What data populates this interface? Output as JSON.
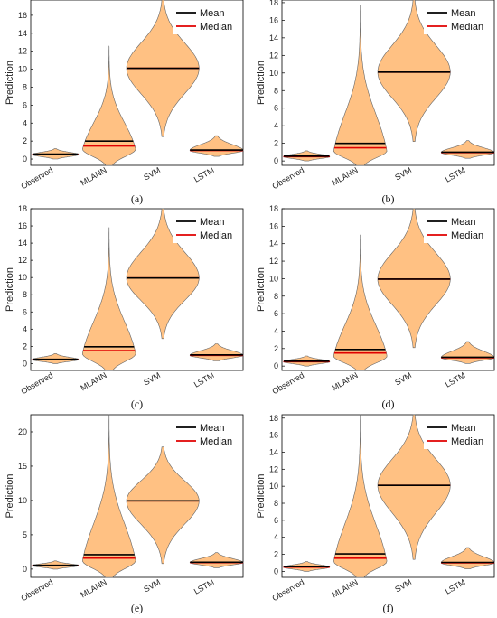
{
  "chart_data": [
    {
      "panel_label": "(a)",
      "type": "violin",
      "ylabel": "Prediction",
      "ylim": [
        -0.7,
        17.7
      ],
      "yticks": [
        0,
        2,
        4,
        6,
        8,
        10,
        12,
        14,
        16
      ],
      "categories": [
        "Observed",
        "MLANN",
        "SVM",
        "LSTM"
      ],
      "legend": [
        "Mean",
        "Median"
      ],
      "legend_position": "top-right",
      "series": [
        {
          "name": "Observed",
          "mean": 0.55,
          "median": 0.5,
          "min": 0.0,
          "max": 1.15
        },
        {
          "name": "MLANN",
          "mean": 2.0,
          "median": 1.45,
          "min": -0.7,
          "max": 12.6
        },
        {
          "name": "SVM",
          "mean": 10.1,
          "median": 10.1,
          "min": 2.5,
          "max": 17.7
        },
        {
          "name": "LSTM",
          "mean": 1.0,
          "median": 0.95,
          "min": 0.3,
          "max": 2.6
        }
      ]
    },
    {
      "panel_label": "(b)",
      "type": "violin",
      "ylabel": "Prediction",
      "ylim": [
        -0.5,
        18.3
      ],
      "yticks": [
        0,
        2,
        4,
        6,
        8,
        10,
        12,
        14,
        16,
        18
      ],
      "categories": [
        "Observed",
        "MLANN",
        "SVM",
        "LSTM"
      ],
      "legend": [
        "Mean",
        "Median"
      ],
      "legend_position": "top-right",
      "series": [
        {
          "name": "Observed",
          "mean": 0.55,
          "median": 0.5,
          "min": 0.0,
          "max": 1.15
        },
        {
          "name": "MLANN",
          "mean": 2.0,
          "median": 1.5,
          "min": -0.5,
          "max": 17.7
        },
        {
          "name": "SVM",
          "mean": 10.1,
          "median": 10.1,
          "min": 2.2,
          "max": 18.3
        },
        {
          "name": "LSTM",
          "mean": 1.0,
          "median": 0.95,
          "min": 0.3,
          "max": 2.3
        }
      ]
    },
    {
      "panel_label": "(c)",
      "type": "violin",
      "ylabel": "Prediction",
      "ylim": [
        -0.8,
        18.0
      ],
      "yticks": [
        0,
        2,
        4,
        6,
        8,
        10,
        12,
        14,
        16,
        18
      ],
      "categories": [
        "Observed",
        "MLANN",
        "SVM",
        "LSTM"
      ],
      "legend": [
        "Mean",
        "Median"
      ],
      "legend_position": "top-right",
      "series": [
        {
          "name": "Observed",
          "mean": 0.5,
          "median": 0.45,
          "min": 0.0,
          "max": 1.15
        },
        {
          "name": "MLANN",
          "mean": 1.95,
          "median": 1.5,
          "min": -0.8,
          "max": 15.8
        },
        {
          "name": "SVM",
          "mean": 9.95,
          "median": 9.95,
          "min": 2.9,
          "max": 18.0
        },
        {
          "name": "LSTM",
          "mean": 1.0,
          "median": 0.95,
          "min": 0.3,
          "max": 2.3
        }
      ]
    },
    {
      "panel_label": "(d)",
      "type": "violin",
      "ylabel": "Prediction",
      "ylim": [
        -0.5,
        18.0
      ],
      "yticks": [
        0,
        2,
        4,
        6,
        8,
        10,
        12,
        14,
        16,
        18
      ],
      "categories": [
        "Observed",
        "MLANN",
        "SVM",
        "LSTM"
      ],
      "legend": [
        "Mean",
        "Median"
      ],
      "legend_position": "top-right",
      "series": [
        {
          "name": "Observed",
          "mean": 0.55,
          "median": 0.5,
          "min": 0.0,
          "max": 1.15
        },
        {
          "name": "MLANN",
          "mean": 1.9,
          "median": 1.5,
          "min": -0.5,
          "max": 15.0
        },
        {
          "name": "SVM",
          "mean": 9.95,
          "median": 9.95,
          "min": 2.1,
          "max": 18.0
        },
        {
          "name": "LSTM",
          "mean": 1.0,
          "median": 0.95,
          "min": 0.3,
          "max": 2.8
        }
      ]
    },
    {
      "panel_label": "(e)",
      "type": "violin",
      "ylabel": "Prediction",
      "ylim": [
        -1.2,
        22.5
      ],
      "yticks": [
        0,
        5,
        10,
        15,
        20
      ],
      "categories": [
        "Observed",
        "MLANN",
        "SVM",
        "LSTM"
      ],
      "legend": [
        "Mean",
        "Median"
      ],
      "legend_position": "top-right",
      "series": [
        {
          "name": "Observed",
          "mean": 0.55,
          "median": 0.5,
          "min": 0.0,
          "max": 1.2
        },
        {
          "name": "MLANN",
          "mean": 2.1,
          "median": 1.6,
          "min": -1.2,
          "max": 22.5
        },
        {
          "name": "SVM",
          "mean": 9.95,
          "median": 9.95,
          "min": 0.8,
          "max": 17.8
        },
        {
          "name": "LSTM",
          "mean": 1.0,
          "median": 0.95,
          "min": 0.2,
          "max": 2.4
        }
      ]
    },
    {
      "panel_label": "(f)",
      "type": "violin",
      "ylabel": "Prediction",
      "ylim": [
        -0.7,
        18.4
      ],
      "yticks": [
        0,
        2,
        4,
        6,
        8,
        10,
        12,
        14,
        16,
        18
      ],
      "categories": [
        "Observed",
        "MLANN",
        "SVM",
        "LSTM"
      ],
      "legend": [
        "Mean",
        "Median"
      ],
      "legend_position": "top-right",
      "series": [
        {
          "name": "Observed",
          "mean": 0.55,
          "median": 0.5,
          "min": 0.0,
          "max": 1.15
        },
        {
          "name": "MLANN",
          "mean": 2.05,
          "median": 1.55,
          "min": -0.7,
          "max": 18.4
        },
        {
          "name": "SVM",
          "mean": 10.1,
          "median": 10.1,
          "min": 1.4,
          "max": 18.4
        },
        {
          "name": "LSTM",
          "mean": 1.05,
          "median": 1.0,
          "min": 0.3,
          "max": 2.8
        }
      ]
    }
  ],
  "colors": {
    "violin_fill": "#ffc183",
    "violin_edge": "#666666",
    "mean_line": "#000000",
    "median_line": "#e00000"
  }
}
